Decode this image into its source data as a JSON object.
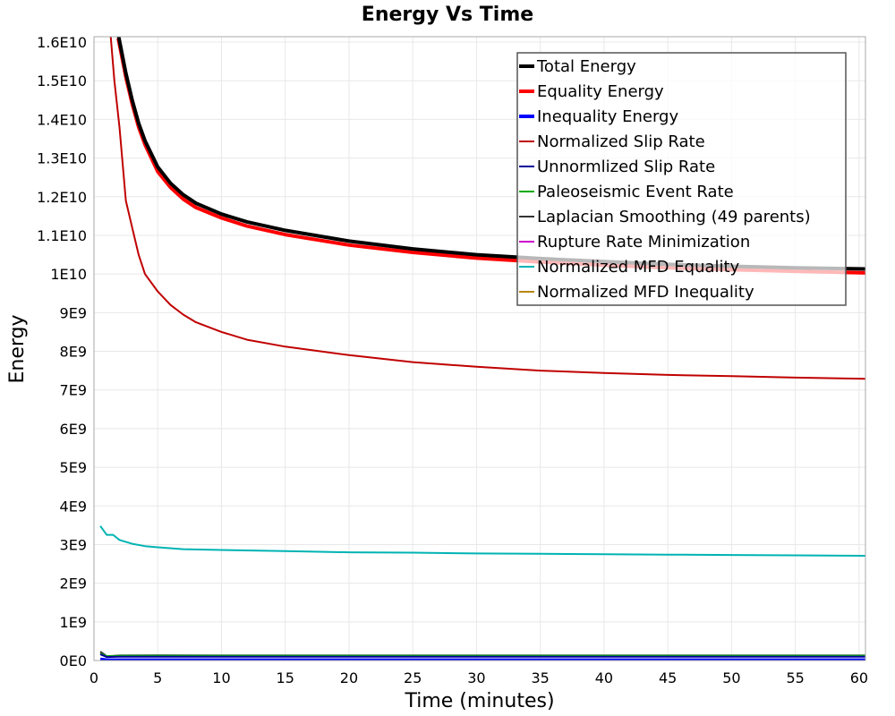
{
  "chart_data": {
    "type": "line",
    "title": "Energy Vs Time",
    "xlabel": "Time (minutes)",
    "ylabel": "Energy",
    "xlim": [
      0,
      60.5
    ],
    "ylim": [
      0,
      16140000000
    ],
    "grid": true,
    "legend_position": "top-right",
    "x_ticks": [
      0,
      5,
      10,
      15,
      20,
      25,
      30,
      35,
      40,
      45,
      50,
      55,
      60
    ],
    "x_tick_labels": [
      "0",
      "5",
      "10",
      "15",
      "20",
      "25",
      "30",
      "35",
      "40",
      "45",
      "50",
      "55",
      "60"
    ],
    "y_ticks": [
      0,
      1000000000.0,
      2000000000.0,
      3000000000.0,
      4000000000.0,
      5000000000.0,
      6000000000.0,
      7000000000.0,
      8000000000.0,
      9000000000.0,
      10000000000.0,
      11000000000.0,
      12000000000.0,
      13000000000.0,
      14000000000.0,
      15000000000.0,
      16000000000.0
    ],
    "y_tick_labels": [
      "0E0",
      "1E9",
      "2E9",
      "3E9",
      "4E9",
      "5E9",
      "6E9",
      "7E9",
      "8E9",
      "9E9",
      "1E10",
      "1.1E10",
      "1.2E10",
      "1.3E10",
      "1.4E10",
      "1.5E10",
      "1.6E10"
    ],
    "series": [
      {
        "name": "Total Energy",
        "color": "#000000",
        "width": "thick",
        "x": [
          1.9,
          2.5,
          3,
          3.5,
          4,
          5,
          6,
          7,
          8,
          10,
          12,
          15,
          20,
          25,
          30,
          35,
          40,
          45,
          50,
          55,
          60.5
        ],
        "y": [
          16200000000.0,
          15200000000.0,
          14500000000.0,
          13900000000.0,
          13450000000.0,
          12770000000.0,
          12350000000.0,
          12050000000.0,
          11830000000.0,
          11550000000.0,
          11350000000.0,
          11130000000.0,
          10850000000.0,
          10650000000.0,
          10500000000.0,
          10400000000.0,
          10320000000.0,
          10250000000.0,
          10200000000.0,
          10160000000.0,
          10130000000.0
        ]
      },
      {
        "name": "Equality Energy",
        "color": "#ff0000",
        "width": "thick",
        "x": [
          1.9,
          2.5,
          3,
          3.5,
          4,
          5,
          6,
          7,
          8,
          10,
          12,
          15,
          20,
          25,
          30,
          35,
          40,
          45,
          50,
          55,
          60.5
        ],
        "y": [
          16100000000.0,
          15100000000.0,
          14400000000.0,
          13800000000.0,
          13350000000.0,
          12650000000.0,
          12240000000.0,
          11940000000.0,
          11720000000.0,
          11450000000.0,
          11240000000.0,
          11020000000.0,
          10750000000.0,
          10560000000.0,
          10410000000.0,
          10310000000.0,
          10230000000.0,
          10160000000.0,
          10110000000.0,
          10070000000.0,
          10030000000.0
        ]
      },
      {
        "name": "Inequality Energy",
        "color": "#0000ff",
        "width": "thick",
        "x": [
          0.5,
          1,
          2,
          5,
          10,
          20,
          30,
          40,
          50,
          60.5
        ],
        "y": [
          30000000.0,
          10000000.0,
          10000000.0,
          10000000.0,
          10000000.0,
          10000000.0,
          10000000.0,
          10000000.0,
          10000000.0,
          10000000.0
        ]
      },
      {
        "name": "Normalized Slip Rate",
        "color": "#c00000",
        "width": "thin",
        "x": [
          1.3,
          1.6,
          2,
          2.5,
          3,
          3.5,
          4,
          5,
          6,
          7,
          8,
          10,
          12,
          15,
          20,
          25,
          30,
          35,
          40,
          45,
          50,
          55,
          60.5
        ],
        "y": [
          16200000000.0,
          15000000000.0,
          13800000000.0,
          11900000000.0,
          11200000000.0,
          10500000000.0,
          10000000000.0,
          9550000000.0,
          9200000000.0,
          8950000000.0,
          8750000000.0,
          8500000000.0,
          8300000000.0,
          8120000000.0,
          7900000000.0,
          7720000000.0,
          7600000000.0,
          7500000000.0,
          7440000000.0,
          7390000000.0,
          7360000000.0,
          7320000000.0,
          7290000000.0
        ]
      },
      {
        "name": "Unnormlized Slip Rate",
        "color": "#000099",
        "width": "thin",
        "x": [
          0.5,
          1,
          2,
          5,
          10,
          20,
          30,
          40,
          50,
          60.5
        ],
        "y": [
          160000000.0,
          90000000.0,
          100000000.0,
          100000000.0,
          100000000.0,
          100000000.0,
          100000000.0,
          100000000.0,
          100000000.0,
          100000000.0
        ]
      },
      {
        "name": "Paleoseismic Event Rate",
        "color": "#00aa00",
        "width": "thin",
        "x": [
          0.5,
          1,
          2,
          5,
          10,
          20,
          30,
          40,
          50,
          60.5
        ],
        "y": [
          180000000.0,
          110000000.0,
          120000000.0,
          120000000.0,
          120000000.0,
          120000000.0,
          120000000.0,
          120000000.0,
          120000000.0,
          120000000.0
        ]
      },
      {
        "name": "Laplacian Smoothing (49 parents)",
        "color": "#333333",
        "width": "thin",
        "x": [
          0.5,
          1,
          2,
          5,
          10,
          20,
          30,
          40,
          50,
          60.5
        ],
        "y": [
          230000000.0,
          110000000.0,
          130000000.0,
          135000000.0,
          130000000.0,
          130000000.0,
          130000000.0,
          130000000.0,
          130000000.0,
          130000000.0
        ]
      },
      {
        "name": "Rupture Rate Minimization",
        "color": "#cc00cc",
        "width": "thin",
        "x": [
          0.5,
          1,
          2,
          5,
          10,
          20,
          30,
          40,
          50,
          60.5
        ],
        "y": [
          20000000.0,
          20000000.0,
          20000000.0,
          20000000.0,
          20000000.0,
          20000000.0,
          20000000.0,
          20000000.0,
          20000000.0,
          20000000.0
        ]
      },
      {
        "name": "Normalized MFD Equality",
        "color": "#00b3b3",
        "width": "thin",
        "x": [
          0.5,
          1,
          1.5,
          2,
          3,
          4,
          5,
          7,
          10,
          15,
          20,
          25,
          30,
          35,
          40,
          45,
          50,
          55,
          60.5
        ],
        "y": [
          3480000000.0,
          3250000000.0,
          3250000000.0,
          3120000000.0,
          3020000000.0,
          2960000000.0,
          2930000000.0,
          2880000000.0,
          2860000000.0,
          2830000000.0,
          2800000000.0,
          2790000000.0,
          2770000000.0,
          2760000000.0,
          2750000000.0,
          2740000000.0,
          2730000000.0,
          2720000000.0,
          2710000000.0
        ]
      },
      {
        "name": "Normalized MFD Inequality",
        "color": "#b8860b",
        "width": "thin",
        "x": [
          0.5,
          1,
          2,
          5,
          10,
          20,
          30,
          40,
          50,
          60.5
        ],
        "y": [
          210000000.0,
          100000000.0,
          115000000.0,
          120000000.0,
          120000000.0,
          120000000.0,
          120000000.0,
          120000000.0,
          120000000.0,
          120000000.0
        ]
      }
    ]
  }
}
